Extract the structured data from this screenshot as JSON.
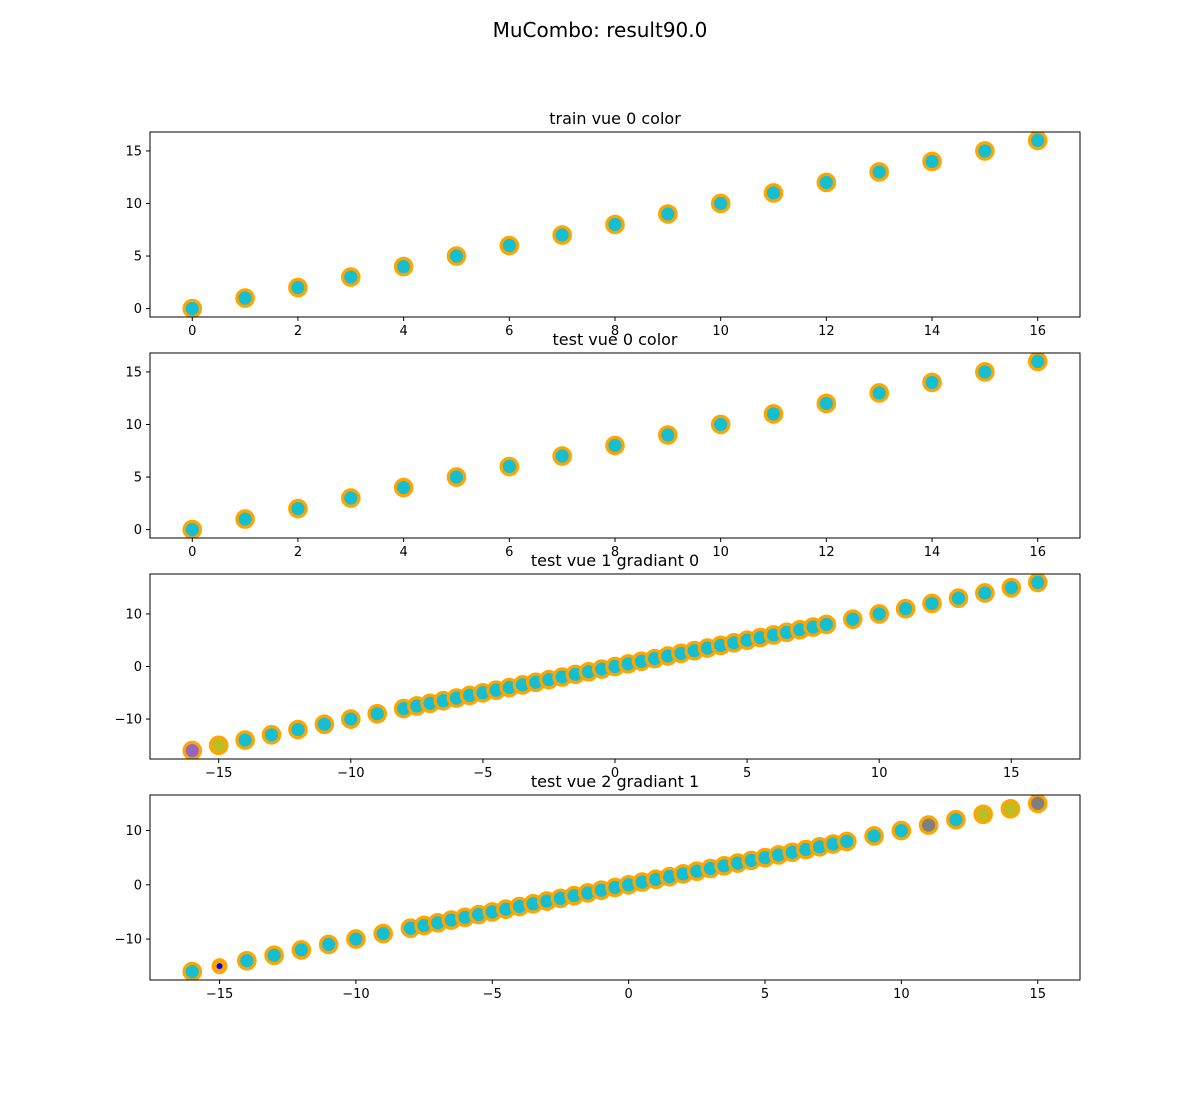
{
  "suptitle": "MuCombo: result90.0",
  "chart_data": [
    {
      "type": "scatter",
      "title": "train vue 0 color",
      "xlim": [
        -0.8,
        16.8
      ],
      "ylim": [
        -0.8,
        16.8
      ],
      "xticks": [
        0,
        2,
        4,
        6,
        8,
        10,
        12,
        14,
        16
      ],
      "yticks": [
        0,
        5,
        10,
        15
      ],
      "edge_color": "#ffa500",
      "points": [
        {
          "x": 0,
          "y": 0,
          "fill": "#17becf"
        },
        {
          "x": 1,
          "y": 1,
          "fill": "#17becf"
        },
        {
          "x": 2,
          "y": 2,
          "fill": "#17becf"
        },
        {
          "x": 3,
          "y": 3,
          "fill": "#17becf"
        },
        {
          "x": 4,
          "y": 4,
          "fill": "#17becf"
        },
        {
          "x": 5,
          "y": 5,
          "fill": "#17becf"
        },
        {
          "x": 6,
          "y": 6,
          "fill": "#17becf"
        },
        {
          "x": 7,
          "y": 7,
          "fill": "#17becf"
        },
        {
          "x": 8,
          "y": 8,
          "fill": "#17becf"
        },
        {
          "x": 9,
          "y": 9,
          "fill": "#17becf"
        },
        {
          "x": 10,
          "y": 10,
          "fill": "#17becf"
        },
        {
          "x": 11,
          "y": 11,
          "fill": "#17becf"
        },
        {
          "x": 12,
          "y": 12,
          "fill": "#17becf"
        },
        {
          "x": 13,
          "y": 13,
          "fill": "#17becf"
        },
        {
          "x": 14,
          "y": 14,
          "fill": "#17becf"
        },
        {
          "x": 15,
          "y": 15,
          "fill": "#17becf"
        },
        {
          "x": 16,
          "y": 16,
          "fill": "#17becf"
        }
      ]
    },
    {
      "type": "scatter",
      "title": "test vue 0 color",
      "xlim": [
        -0.8,
        16.8
      ],
      "ylim": [
        -0.8,
        16.8
      ],
      "xticks": [
        0,
        2,
        4,
        6,
        8,
        10,
        12,
        14,
        16
      ],
      "yticks": [
        0,
        5,
        10,
        15
      ],
      "edge_color": "#ffa500",
      "points": [
        {
          "x": 0,
          "y": 0,
          "fill": "#17becf"
        },
        {
          "x": 1,
          "y": 1,
          "fill": "#17becf"
        },
        {
          "x": 2,
          "y": 2,
          "fill": "#17becf"
        },
        {
          "x": 3,
          "y": 3,
          "fill": "#17becf"
        },
        {
          "x": 4,
          "y": 4,
          "fill": "#17becf"
        },
        {
          "x": 5,
          "y": 5,
          "fill": "#17becf"
        },
        {
          "x": 6,
          "y": 6,
          "fill": "#17becf"
        },
        {
          "x": 7,
          "y": 7,
          "fill": "#17becf"
        },
        {
          "x": 8,
          "y": 8,
          "fill": "#17becf"
        },
        {
          "x": 9,
          "y": 9,
          "fill": "#17becf"
        },
        {
          "x": 10,
          "y": 10,
          "fill": "#17becf"
        },
        {
          "x": 11,
          "y": 11,
          "fill": "#17becf"
        },
        {
          "x": 12,
          "y": 12,
          "fill": "#17becf"
        },
        {
          "x": 13,
          "y": 13,
          "fill": "#17becf"
        },
        {
          "x": 14,
          "y": 14,
          "fill": "#17becf"
        },
        {
          "x": 15,
          "y": 15,
          "fill": "#17becf"
        },
        {
          "x": 16,
          "y": 16,
          "fill": "#17becf"
        }
      ]
    },
    {
      "type": "scatter",
      "title": "test vue 1 gradiant 0",
      "xlim": [
        -17.6,
        17.6
      ],
      "ylim": [
        -17.6,
        17.6
      ],
      "xticks": [
        -15,
        -10,
        -5,
        0,
        5,
        10,
        15
      ],
      "yticks": [
        -10,
        0,
        10
      ],
      "edge_color": "#ffa500",
      "points": [
        {
          "x": -16,
          "y": -16,
          "fill": "#9467bd"
        },
        {
          "x": -15,
          "y": -15,
          "fill": "#bcbd22"
        },
        {
          "x": -14,
          "y": -14,
          "fill": "#17becf"
        },
        {
          "x": -13,
          "y": -13,
          "fill": "#17becf"
        },
        {
          "x": -12,
          "y": -12,
          "fill": "#17becf"
        },
        {
          "x": -11,
          "y": -11,
          "fill": "#17becf"
        },
        {
          "x": -10,
          "y": -10,
          "fill": "#17becf"
        },
        {
          "x": -9,
          "y": -9,
          "fill": "#17becf"
        },
        {
          "x": -8,
          "y": -8,
          "fill": "#17becf"
        },
        {
          "x": -7.5,
          "y": -7.5,
          "fill": "#17becf"
        },
        {
          "x": -7,
          "y": -7,
          "fill": "#17becf"
        },
        {
          "x": -6.5,
          "y": -6.5,
          "fill": "#17becf"
        },
        {
          "x": -6,
          "y": -6,
          "fill": "#17becf"
        },
        {
          "x": -5.5,
          "y": -5.5,
          "fill": "#17becf"
        },
        {
          "x": -5,
          "y": -5,
          "fill": "#17becf"
        },
        {
          "x": -4.5,
          "y": -4.5,
          "fill": "#17becf"
        },
        {
          "x": -4,
          "y": -4,
          "fill": "#17becf"
        },
        {
          "x": -3.5,
          "y": -3.5,
          "fill": "#17becf"
        },
        {
          "x": -3,
          "y": -3,
          "fill": "#17becf"
        },
        {
          "x": -2.5,
          "y": -2.5,
          "fill": "#17becf"
        },
        {
          "x": -2,
          "y": -2,
          "fill": "#17becf"
        },
        {
          "x": -1.5,
          "y": -1.5,
          "fill": "#17becf"
        },
        {
          "x": -1,
          "y": -1,
          "fill": "#17becf"
        },
        {
          "x": -0.5,
          "y": -0.5,
          "fill": "#17becf"
        },
        {
          "x": 0,
          "y": 0,
          "fill": "#17becf"
        },
        {
          "x": 0.5,
          "y": 0.5,
          "fill": "#17becf"
        },
        {
          "x": 1,
          "y": 1,
          "fill": "#17becf"
        },
        {
          "x": 1.5,
          "y": 1.5,
          "fill": "#17becf"
        },
        {
          "x": 2,
          "y": 2,
          "fill": "#17becf"
        },
        {
          "x": 2.5,
          "y": 2.5,
          "fill": "#17becf"
        },
        {
          "x": 3,
          "y": 3,
          "fill": "#17becf"
        },
        {
          "x": 3.5,
          "y": 3.5,
          "fill": "#17becf"
        },
        {
          "x": 4,
          "y": 4,
          "fill": "#17becf"
        },
        {
          "x": 4.5,
          "y": 4.5,
          "fill": "#17becf"
        },
        {
          "x": 5,
          "y": 5,
          "fill": "#17becf"
        },
        {
          "x": 5.5,
          "y": 5.5,
          "fill": "#17becf"
        },
        {
          "x": 6,
          "y": 6,
          "fill": "#17becf"
        },
        {
          "x": 6.5,
          "y": 6.5,
          "fill": "#17becf"
        },
        {
          "x": 7,
          "y": 7,
          "fill": "#17becf"
        },
        {
          "x": 7.5,
          "y": 7.5,
          "fill": "#17becf"
        },
        {
          "x": 8,
          "y": 8,
          "fill": "#17becf"
        },
        {
          "x": 9,
          "y": 9,
          "fill": "#17becf"
        },
        {
          "x": 10,
          "y": 10,
          "fill": "#17becf"
        },
        {
          "x": 11,
          "y": 11,
          "fill": "#17becf"
        },
        {
          "x": 12,
          "y": 12,
          "fill": "#17becf"
        },
        {
          "x": 13,
          "y": 13,
          "fill": "#17becf"
        },
        {
          "x": 14,
          "y": 14,
          "fill": "#17becf"
        },
        {
          "x": 15,
          "y": 15,
          "fill": "#17becf"
        },
        {
          "x": 16,
          "y": 16,
          "fill": "#17becf"
        }
      ]
    },
    {
      "type": "scatter",
      "title": "test vue 2 gradiant 1",
      "xlim": [
        -17.55,
        16.55
      ],
      "ylim": [
        -17.55,
        16.55
      ],
      "xticks": [
        -15,
        -10,
        -5,
        0,
        5,
        10,
        15
      ],
      "yticks": [
        -10,
        0,
        10
      ],
      "edge_color": "#ffa500",
      "points": [
        {
          "x": -16,
          "y": -16,
          "fill": "#17becf"
        },
        {
          "x": -15,
          "y": -15,
          "fill": "#0000ff",
          "small": true
        },
        {
          "x": -14,
          "y": -14,
          "fill": "#17becf"
        },
        {
          "x": -13,
          "y": -13,
          "fill": "#17becf"
        },
        {
          "x": -12,
          "y": -12,
          "fill": "#17becf"
        },
        {
          "x": -11,
          "y": -11,
          "fill": "#17becf"
        },
        {
          "x": -10,
          "y": -10,
          "fill": "#17becf"
        },
        {
          "x": -9,
          "y": -9,
          "fill": "#17becf"
        },
        {
          "x": -8,
          "y": -8,
          "fill": "#17becf"
        },
        {
          "x": -7.5,
          "y": -7.5,
          "fill": "#17becf"
        },
        {
          "x": -7,
          "y": -7,
          "fill": "#17becf"
        },
        {
          "x": -6.5,
          "y": -6.5,
          "fill": "#17becf"
        },
        {
          "x": -6,
          "y": -6,
          "fill": "#17becf"
        },
        {
          "x": -5.5,
          "y": -5.5,
          "fill": "#17becf"
        },
        {
          "x": -5,
          "y": -5,
          "fill": "#17becf"
        },
        {
          "x": -4.5,
          "y": -4.5,
          "fill": "#17becf"
        },
        {
          "x": -4,
          "y": -4,
          "fill": "#17becf"
        },
        {
          "x": -3.5,
          "y": -3.5,
          "fill": "#17becf"
        },
        {
          "x": -3,
          "y": -3,
          "fill": "#17becf"
        },
        {
          "x": -2.5,
          "y": -2.5,
          "fill": "#17becf"
        },
        {
          "x": -2,
          "y": -2,
          "fill": "#17becf"
        },
        {
          "x": -1.5,
          "y": -1.5,
          "fill": "#17becf"
        },
        {
          "x": -1,
          "y": -1,
          "fill": "#17becf"
        },
        {
          "x": -0.5,
          "y": -0.5,
          "fill": "#17becf"
        },
        {
          "x": 0,
          "y": 0,
          "fill": "#17becf"
        },
        {
          "x": 0.5,
          "y": 0.5,
          "fill": "#17becf"
        },
        {
          "x": 1,
          "y": 1,
          "fill": "#17becf"
        },
        {
          "x": 1.5,
          "y": 1.5,
          "fill": "#17becf"
        },
        {
          "x": 2,
          "y": 2,
          "fill": "#17becf"
        },
        {
          "x": 2.5,
          "y": 2.5,
          "fill": "#17becf"
        },
        {
          "x": 3,
          "y": 3,
          "fill": "#17becf"
        },
        {
          "x": 3.5,
          "y": 3.5,
          "fill": "#17becf"
        },
        {
          "x": 4,
          "y": 4,
          "fill": "#17becf"
        },
        {
          "x": 4.5,
          "y": 4.5,
          "fill": "#17becf"
        },
        {
          "x": 5,
          "y": 5,
          "fill": "#17becf"
        },
        {
          "x": 5.5,
          "y": 5.5,
          "fill": "#17becf"
        },
        {
          "x": 6,
          "y": 6,
          "fill": "#17becf"
        },
        {
          "x": 6.5,
          "y": 6.5,
          "fill": "#17becf"
        },
        {
          "x": 7,
          "y": 7,
          "fill": "#17becf"
        },
        {
          "x": 7.5,
          "y": 7.5,
          "fill": "#17becf"
        },
        {
          "x": 8,
          "y": 8,
          "fill": "#17becf"
        },
        {
          "x": 9,
          "y": 9,
          "fill": "#17becf"
        },
        {
          "x": 10,
          "y": 10,
          "fill": "#17becf"
        },
        {
          "x": 11,
          "y": 11,
          "fill": "#7f7f7f"
        },
        {
          "x": 12,
          "y": 12,
          "fill": "#17becf"
        },
        {
          "x": 13,
          "y": 13,
          "fill": "#bcbd22"
        },
        {
          "x": 14,
          "y": 14,
          "fill": "#bcbd22"
        },
        {
          "x": 15,
          "y": 15,
          "fill": "#7f7f7f"
        }
      ]
    }
  ]
}
